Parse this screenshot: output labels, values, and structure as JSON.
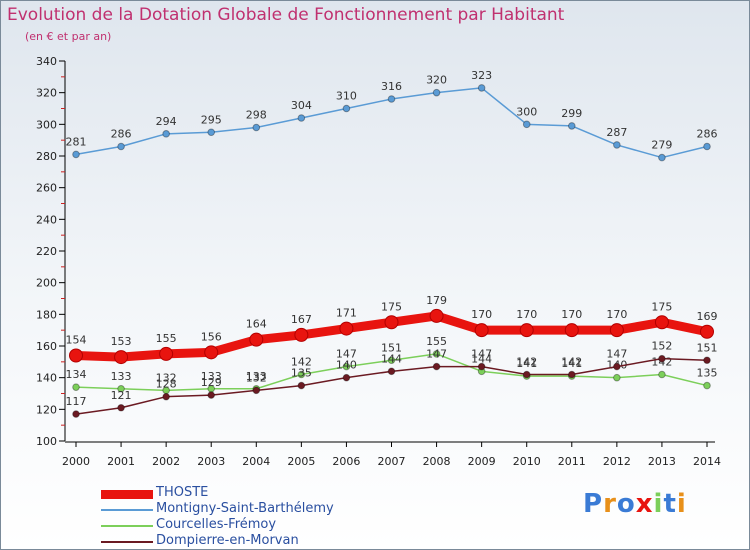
{
  "title": "Evolution de la Dotation Globale de Fonctionnement par Habitant",
  "subtitle": "(en € et par an)",
  "logo_text": "Proxiti",
  "chart_data": {
    "type": "line",
    "x": [
      2000,
      2001,
      2002,
      2003,
      2004,
      2005,
      2006,
      2007,
      2008,
      2009,
      2010,
      2011,
      2012,
      2013,
      2014
    ],
    "ylim": [
      100,
      340
    ],
    "yticks": [
      100,
      120,
      140,
      160,
      180,
      200,
      220,
      240,
      260,
      280,
      300,
      320,
      340
    ],
    "grid": false,
    "legend_position": "bottom-left",
    "series": [
      {
        "name": "Montigny-Saint-Barthélemy",
        "color": "#5a9bd5",
        "values": [
          281,
          286,
          294,
          295,
          298,
          304,
          310,
          316,
          320,
          323,
          300,
          299,
          287,
          279,
          286
        ]
      },
      {
        "name": "Courcelles-Frémoy",
        "color": "#7ccf5a",
        "values": [
          134,
          133,
          132,
          133,
          133,
          142,
          147,
          151,
          155,
          144,
          141,
          141,
          140,
          142,
          135
        ]
      },
      {
        "name": "Dompierre-en-Morvan",
        "color": "#6b1a22",
        "values": [
          117,
          121,
          128,
          129,
          132,
          135,
          140,
          144,
          147,
          147,
          142,
          142,
          147,
          152,
          151
        ]
      },
      {
        "name": "THOSTE",
        "color": "#e8140f",
        "values": [
          154,
          153,
          155,
          156,
          164,
          167,
          171,
          175,
          179,
          170,
          170,
          170,
          170,
          175,
          169
        ]
      }
    ],
    "legend_order": [
      "THOSTE",
      "Montigny-Saint-Barthélemy",
      "Courcelles-Frémoy",
      "Dompierre-en-Morvan"
    ]
  }
}
